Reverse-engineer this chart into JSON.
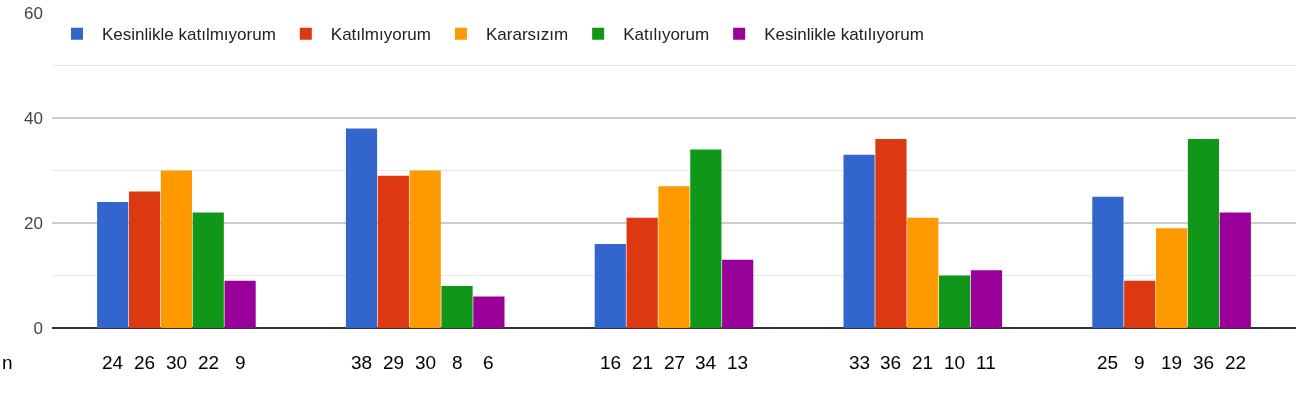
{
  "chart_data": {
    "type": "bar",
    "categories": [
      null,
      null,
      null,
      null,
      null
    ],
    "series": [
      {
        "name": "Kesinlikle katılmıyorum",
        "color": "#3366cc",
        "values": [
          24,
          38,
          16,
          33,
          25
        ]
      },
      {
        "name": "Katılmıyorum",
        "color": "#dc3912",
        "values": [
          26,
          29,
          21,
          36,
          9
        ]
      },
      {
        "name": "Kararsızım",
        "color": "#ff9900",
        "values": [
          30,
          30,
          27,
          21,
          19
        ]
      },
      {
        "name": "Katılıyorum",
        "color": "#109618",
        "values": [
          22,
          8,
          34,
          10,
          36
        ]
      },
      {
        "name": "Kesinlikle katılıyorum",
        "color": "#990099",
        "values": [
          9,
          6,
          13,
          11,
          22
        ]
      }
    ],
    "ylim": [
      0,
      60
    ],
    "yticks": [
      0,
      20,
      40,
      60
    ],
    "grid": true,
    "legend": "top",
    "data_labels": true,
    "annotations": [
      "n"
    ]
  }
}
